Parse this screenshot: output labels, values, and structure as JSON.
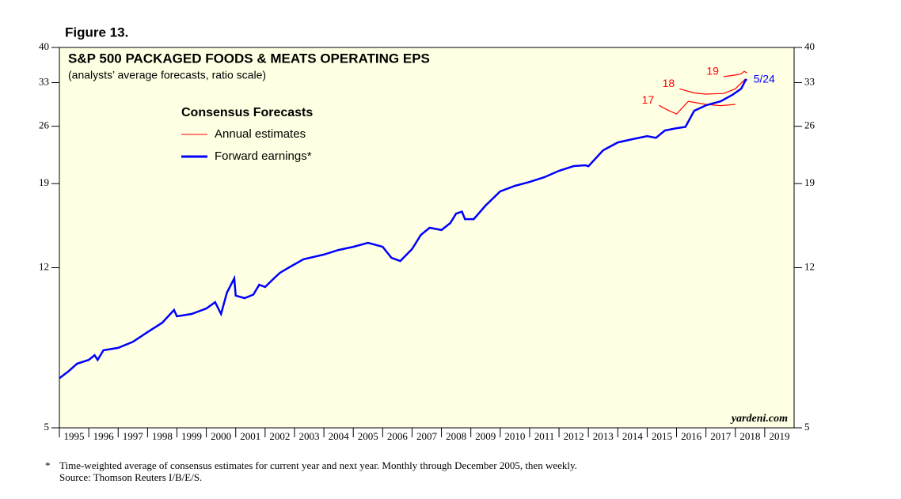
{
  "chart_data": {
    "type": "line",
    "figure_label": "Figure 13.",
    "title": "S&P 500 PACKAGED FOODS & MEATS OPERATING EPS",
    "subtitle": "(analysts’ average forecasts, ratio scale)",
    "legend_title": "Consensus Forecasts",
    "legend_entries": [
      {
        "name": "Annual estimates",
        "color": "#ff0000"
      },
      {
        "name": "Forward earnings*",
        "color": "#0000ff"
      }
    ],
    "log_scale": true,
    "xlim": [
      1995,
      2020
    ],
    "xticks": [
      1995,
      1996,
      1997,
      1998,
      1999,
      2000,
      2001,
      2002,
      2003,
      2004,
      2005,
      2006,
      2007,
      2008,
      2009,
      2010,
      2011,
      2012,
      2013,
      2014,
      2015,
      2016,
      2017,
      2018,
      2019
    ],
    "ylim": [
      5,
      40
    ],
    "yticks": [
      5,
      12,
      19,
      26,
      33,
      40
    ],
    "series": [
      {
        "name": "Forward earnings*",
        "color": "#0000ff",
        "end_label": "5/24",
        "x": [
          1995.0,
          1995.3,
          1995.6,
          1996.0,
          1996.2,
          1996.3,
          1996.5,
          1997.0,
          1997.5,
          1998.0,
          1998.5,
          1998.9,
          1999.0,
          1999.5,
          2000.0,
          2000.3,
          2000.5,
          2000.7,
          2000.95,
          2001.0,
          2001.3,
          2001.6,
          2001.8,
          2002.0,
          2002.3,
          2002.5,
          2002.8,
          2003.3,
          2004.0,
          2004.5,
          2005.0,
          2005.5,
          2006.0,
          2006.3,
          2006.6,
          2007.0,
          2007.3,
          2007.6,
          2008.0,
          2008.3,
          2008.5,
          2008.7,
          2008.8,
          2009.1,
          2009.5,
          2010.0,
          2010.5,
          2011.0,
          2011.5,
          2012.0,
          2012.5,
          2012.9,
          2013.0,
          2013.5,
          2014.0,
          2014.5,
          2015.0,
          2015.3,
          2015.6,
          2016.0,
          2016.3,
          2016.6,
          2017.0,
          2017.5,
          2017.9,
          2018.2,
          2018.35,
          2018.4
        ],
        "values": [
          6.56,
          6.8,
          7.1,
          7.25,
          7.44,
          7.25,
          7.64,
          7.74,
          8.0,
          8.44,
          8.88,
          9.52,
          9.2,
          9.32,
          9.6,
          9.94,
          9.32,
          10.47,
          11.32,
          10.3,
          10.16,
          10.36,
          10.93,
          10.8,
          11.32,
          11.66,
          12.0,
          12.56,
          12.89,
          13.22,
          13.45,
          13.75,
          13.45,
          12.66,
          12.45,
          13.28,
          14.36,
          14.93,
          14.74,
          15.31,
          16.13,
          16.3,
          15.65,
          15.65,
          16.85,
          18.21,
          18.77,
          19.17,
          19.68,
          20.38,
          20.91,
          21.0,
          20.9,
          22.79,
          23.8,
          24.22,
          24.64,
          24.4,
          25.4,
          25.72,
          25.9,
          28.29,
          29.15,
          29.8,
          30.86,
          31.93,
          33.5,
          33.5
        ]
      },
      {
        "name": "17",
        "color": "#ff0000",
        "x": [
          2015.4,
          2015.7,
          2016.0,
          2016.4,
          2017.0,
          2017.5,
          2018.0
        ],
        "values": [
          29.15,
          28.4,
          27.8,
          29.8,
          29.3,
          29.1,
          29.3
        ]
      },
      {
        "name": "18",
        "color": "#ff0000",
        "x": [
          2016.1,
          2016.6,
          2017.0,
          2017.6,
          2018.0,
          2018.35
        ],
        "values": [
          31.9,
          31.2,
          31.0,
          31.1,
          31.9,
          33.7
        ]
      },
      {
        "name": "19",
        "color": "#ff0000",
        "x": [
          2017.6,
          2018.0,
          2018.2,
          2018.3,
          2018.4
        ],
        "values": [
          34.1,
          34.4,
          34.6,
          35.1,
          34.8
        ]
      }
    ],
    "watermark": "yardeni.com",
    "footnotes": [
      "*",
      "Time-weighted average of consensus estimates for current year and next year. Monthly through December 2005, then weekly.",
      "Source: Thomson Reuters I/B/E/S."
    ]
  }
}
